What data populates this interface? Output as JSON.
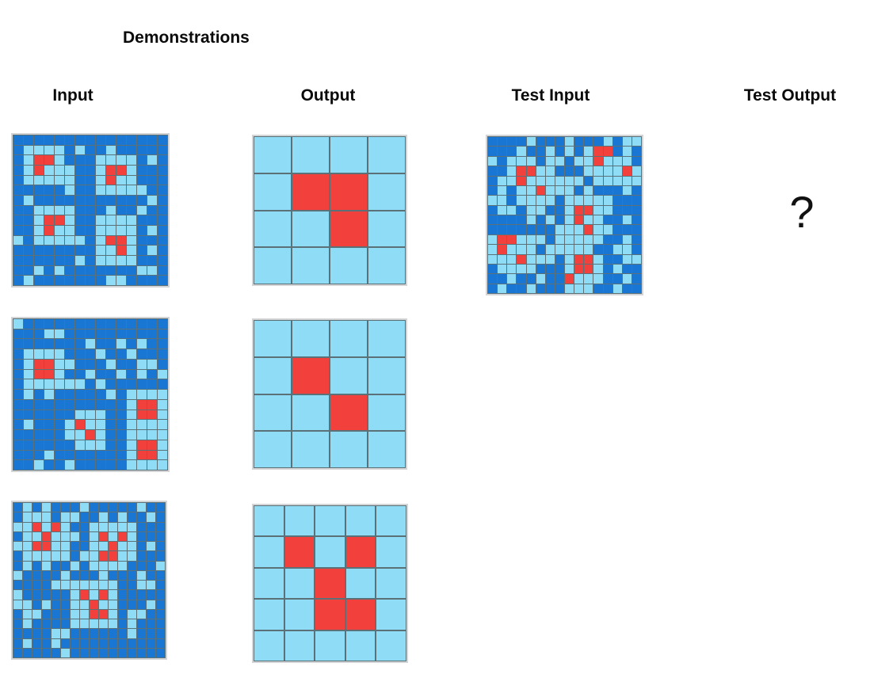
{
  "title": "Demonstrations",
  "columns": {
    "input": "Input",
    "output": "Output",
    "test_input": "Test Input",
    "test_output": "Test Output"
  },
  "test_output_placeholder": "?",
  "colors": {
    "0": "#1976d2",
    "1": "#8fdcf7",
    "2": "#f2413c",
    "gridline": "#5c7078",
    "frame": "#d2d4d6"
  },
  "chart_data": {
    "type": "heatmap",
    "legend": {
      "0": "dark-blue",
      "1": "light-blue",
      "2": "red"
    },
    "grids": {
      "demo1_input": {
        "name": "demonstration-1-input",
        "rows": 15,
        "cols": 15,
        "cells": [
          "000000000000000",
          "011110100100000",
          "012210001111010",
          "012111001221000",
          "011111001211000",
          "000001001111100",
          "010000000000010",
          "001111000100100",
          "001221001111000",
          "001211001111010",
          "101111101221000",
          "000000001121010",
          "000000101111000",
          "001010000000110",
          "010000000110000"
        ]
      },
      "demo1_output": {
        "name": "demonstration-1-output",
        "rows": 4,
        "cols": 4,
        "cells": [
          "1111",
          "1221",
          "1121",
          "1111"
        ]
      },
      "demo2_input": {
        "name": "demonstration-2-input",
        "rows": 15,
        "cols": 15,
        "cells": [
          "100000000000000",
          "000110000000000",
          "000000010010100",
          "011110001001000",
          "012211000100110",
          "012210010010101",
          "011111101000000",
          "010100000101111",
          "000000000001221",
          "000000111001221",
          "010001211001111",
          "000001121001111",
          "000000111001221",
          "000100000001221",
          "001001000001111"
        ]
      },
      "demo2_output": {
        "name": "demonstration-2-output",
        "rows": 4,
        "cols": 4,
        "cells": [
          "1111",
          "1211",
          "1121",
          "1111"
        ]
      },
      "demo3_input": {
        "name": "demonstration-3-input",
        "rows": 16,
        "cols": 16,
        "cells": [
          "0101000100000100",
          "0111011001010010",
          "1121210011111000",
          "0112111012121000",
          "1122110011211010",
          "0111110112211000",
          "0101001011110001",
          "1000010001000100",
          "0000111111100110",
          "1000001212100000",
          "1101001121100010",
          "0110001122101100",
          "0100001111101000",
          "0000110000001000",
          "0100100000000000",
          "0000010000000000"
        ]
      },
      "demo3_output": {
        "name": "demonstration-3-output",
        "rows": 5,
        "cols": 5,
        "cells": [
          "11111",
          "12121",
          "11211",
          "11221",
          "11111"
        ]
      },
      "test_input": {
        "name": "test-input",
        "rows": 16,
        "cols": 16,
        "cells": [
          "0000100010001011",
          "0001001010122010",
          "1011101101121110",
          "0012211000111121",
          "0112111111011111",
          "0101121110100010",
          "1101111011111000",
          "0110110012211000",
          "0000101012110010",
          "0000000111211000",
          "1221110111110010",
          "1211101111100110",
          "1112111012210011",
          "0111100012210100",
          "0010010021110010",
          "0100100011100100"
        ]
      }
    }
  }
}
